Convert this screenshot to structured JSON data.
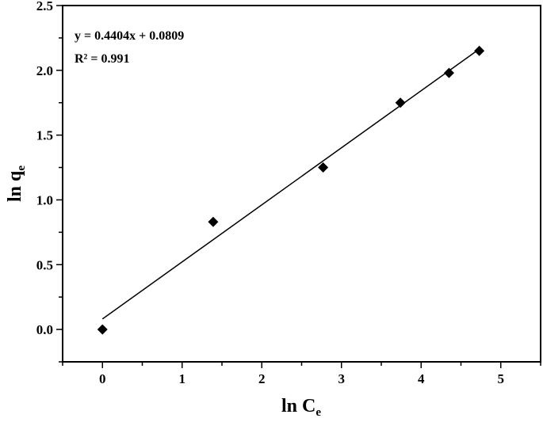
{
  "chart_data": {
    "type": "scatter",
    "xlabel": {
      "main": "ln C",
      "sub": "e"
    },
    "ylabel": {
      "main": "ln q",
      "sub": "e"
    },
    "xlim": [
      -0.5,
      5.5
    ],
    "ylim": [
      -0.25,
      2.5
    ],
    "x_ticks": [
      0,
      1,
      2,
      3,
      4,
      5
    ],
    "x_tick_labels": [
      "0",
      "1",
      "2",
      "3",
      "4",
      "5"
    ],
    "y_ticks": [
      0.0,
      0.5,
      1.0,
      1.5,
      2.0,
      2.5
    ],
    "y_tick_labels": [
      "0.0",
      "0.5",
      "1.0",
      "1.5",
      "2.0",
      "2.5"
    ],
    "grid": false,
    "series": [
      {
        "marker": "diamond",
        "color": "#000000",
        "x": [
          0,
          1.39,
          2.77,
          3.74,
          4.35,
          4.73
        ],
        "y": [
          0.0,
          0.83,
          1.25,
          1.75,
          1.98,
          2.15
        ]
      }
    ],
    "fit_line": {
      "slope": 0.4404,
      "intercept": 0.0809,
      "x_range": [
        0,
        4.73
      ],
      "color": "#000000"
    },
    "annotations": {
      "equation": "y = 0.4404x + 0.0809",
      "r_squared": "R² = 0.991"
    }
  }
}
